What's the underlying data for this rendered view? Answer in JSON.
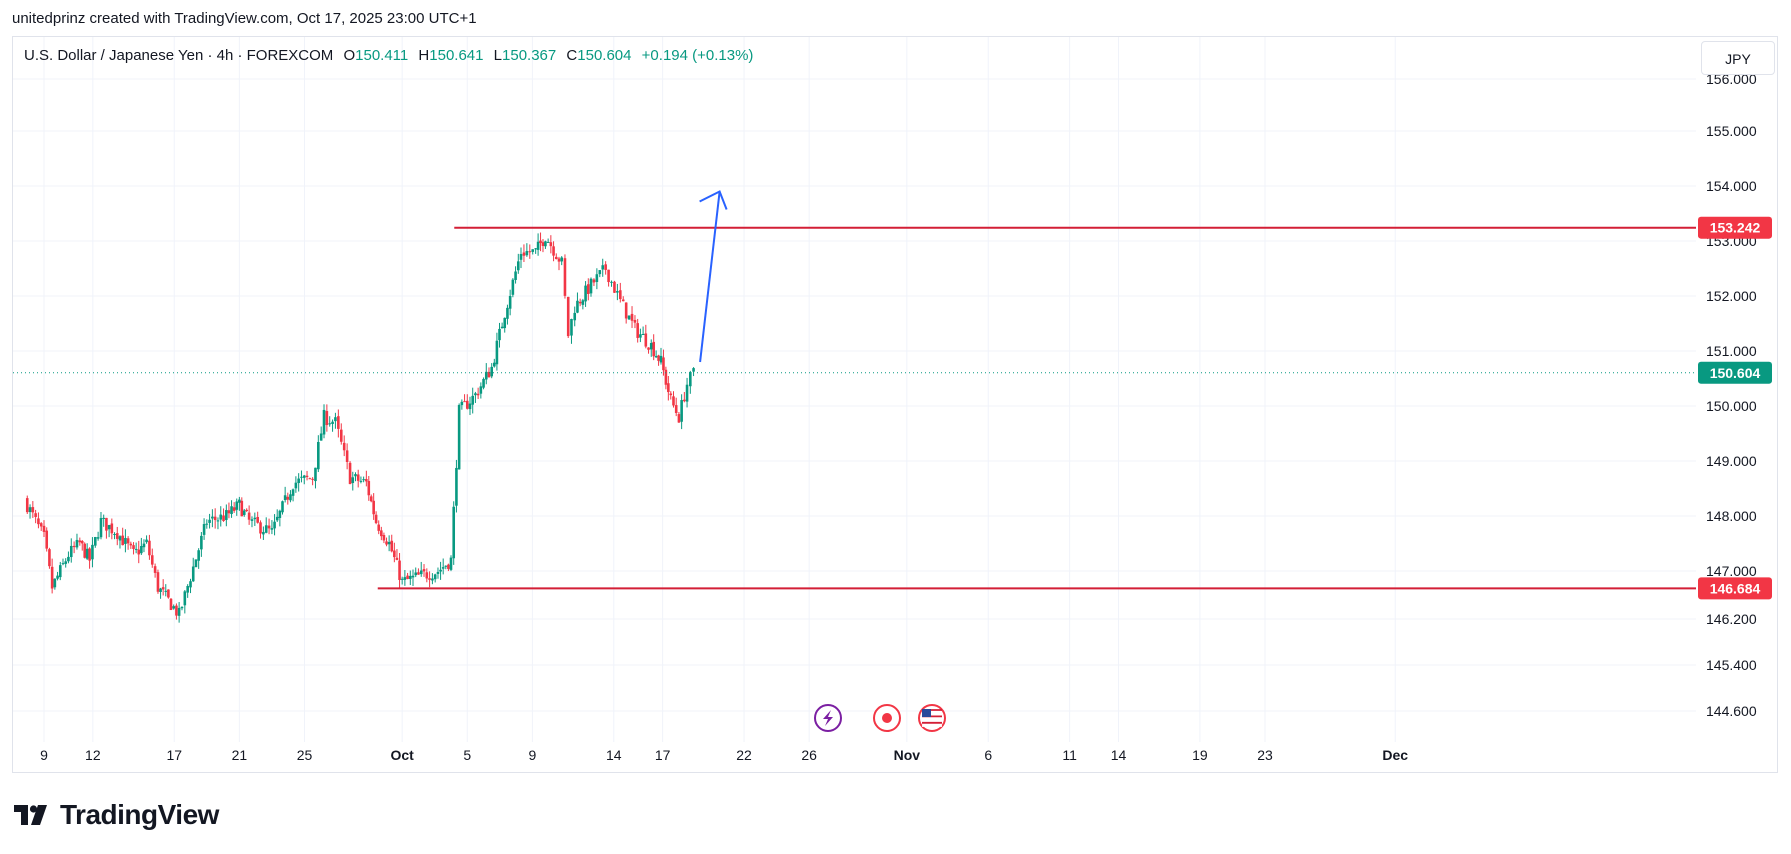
{
  "header": {
    "attribution": "unitedprinz created with TradingView.com, Oct 17, 2025 23:00 UTC+1"
  },
  "legend": {
    "symbol": "U.S. Dollar / Japanese Yen · 4h · FOREXCOM",
    "o_label": "O",
    "o_value": "150.411",
    "h_label": "H",
    "h_value": "150.641",
    "l_label": "L",
    "l_value": "150.367",
    "c_label": "C",
    "c_value": "150.604",
    "change": "+0.194 (+0.13%)"
  },
  "currency_button": "JPY",
  "footer": {
    "brand": "TradingView"
  },
  "colors": {
    "up": "#089981",
    "down": "#f23645",
    "level_line": "#d31f36",
    "arrow": "#2962ff",
    "grid": "#f0f3fa",
    "axis_text": "#131722"
  },
  "icons": [
    "lightning-event-icon",
    "record-event-icon",
    "us-flag-event-icon"
  ],
  "chart_data": {
    "type": "candlestick",
    "symbol": "USD/JPY",
    "interval": "4h",
    "y_axis": {
      "ticks": [
        {
          "value": 155.0,
          "label": "155.000"
        },
        {
          "value": 154.0,
          "label": "154.000"
        },
        {
          "value": 153.0,
          "label": "153.000"
        },
        {
          "value": 152.0,
          "label": "152.000"
        },
        {
          "value": 151.0,
          "label": "151.000"
        },
        {
          "value": 150.0,
          "label": "150.000"
        },
        {
          "value": 149.0,
          "label": "149.000"
        },
        {
          "value": 148.0,
          "label": "148.000"
        },
        {
          "value": 147.0,
          "label": "147.000"
        },
        {
          "value": 146.2,
          "label": "146.200"
        },
        {
          "value": 145.4,
          "label": "145.400"
        },
        {
          "value": 144.6,
          "label": "144.600"
        }
      ],
      "top_partial_label": "156.000"
    },
    "x_axis": {
      "ticks": [
        {
          "day": 0,
          "label": "9",
          "bold": false
        },
        {
          "day": 3,
          "label": "12",
          "bold": false
        },
        {
          "day": 8,
          "label": "17",
          "bold": false
        },
        {
          "day": 12,
          "label": "21",
          "bold": false
        },
        {
          "day": 16,
          "label": "25",
          "bold": false
        },
        {
          "day": 22,
          "label": "Oct",
          "bold": true
        },
        {
          "day": 26,
          "label": "5",
          "bold": false
        },
        {
          "day": 30,
          "label": "9",
          "bold": false
        },
        {
          "day": 35,
          "label": "14",
          "bold": false
        },
        {
          "day": 38,
          "label": "17",
          "bold": false
        },
        {
          "day": 43,
          "label": "22",
          "bold": false
        },
        {
          "day": 47,
          "label": "26",
          "bold": false
        },
        {
          "day": 53,
          "label": "Nov",
          "bold": true
        },
        {
          "day": 58,
          "label": "6",
          "bold": false
        },
        {
          "day": 63,
          "label": "11",
          "bold": false
        },
        {
          "day": 66,
          "label": "14",
          "bold": false
        },
        {
          "day": 71,
          "label": "19",
          "bold": false
        },
        {
          "day": 75,
          "label": "23",
          "bold": false
        },
        {
          "day": 83,
          "label": "Dec",
          "bold": true
        }
      ]
    },
    "price_labels": [
      {
        "value": 153.242,
        "label": "153.242",
        "color": "#f23645"
      },
      {
        "value": 150.604,
        "label": "150.604",
        "color": "#089981"
      },
      {
        "value": 146.684,
        "label": "146.684",
        "color": "#f23645"
      }
    ],
    "levels": [
      {
        "value": 153.242,
        "start_day": 25.2
      },
      {
        "value": 146.684,
        "start_day": 20.5
      }
    ],
    "arrow": {
      "from": {
        "day": 40.3,
        "price": 150.8
      },
      "to": {
        "day": 41.5,
        "price": 153.9
      }
    },
    "waypoints": [
      {
        "day": -1.2,
        "price": 148.3
      },
      {
        "day": 0.0,
        "price": 147.6
      },
      {
        "day": 0.5,
        "price": 146.7
      },
      {
        "day": 1.5,
        "price": 147.3
      },
      {
        "day": 2.2,
        "price": 147.5
      },
      {
        "day": 2.8,
        "price": 147.2
      },
      {
        "day": 3.5,
        "price": 147.9
      },
      {
        "day": 4.5,
        "price": 147.7
      },
      {
        "day": 5.5,
        "price": 147.3
      },
      {
        "day": 6.3,
        "price": 147.5
      },
      {
        "day": 7.0,
        "price": 146.7
      },
      {
        "day": 7.8,
        "price": 146.4
      },
      {
        "day": 8.3,
        "price": 146.2
      },
      {
        "day": 9.0,
        "price": 146.9
      },
      {
        "day": 10.0,
        "price": 147.9
      },
      {
        "day": 11.2,
        "price": 148.0
      },
      {
        "day": 12.0,
        "price": 148.2
      },
      {
        "day": 12.6,
        "price": 147.9
      },
      {
        "day": 14.0,
        "price": 147.7
      },
      {
        "day": 15.3,
        "price": 148.6
      },
      {
        "day": 16.5,
        "price": 148.7
      },
      {
        "day": 17.2,
        "price": 149.8
      },
      {
        "day": 17.9,
        "price": 149.7
      },
      {
        "day": 18.8,
        "price": 148.7
      },
      {
        "day": 19.8,
        "price": 148.6
      },
      {
        "day": 20.4,
        "price": 147.9
      },
      {
        "day": 21.2,
        "price": 147.5
      },
      {
        "day": 22.0,
        "price": 146.8
      },
      {
        "day": 23.0,
        "price": 146.9
      },
      {
        "day": 24.2,
        "price": 147.0
      },
      {
        "day": 25.0,
        "price": 147.2
      },
      {
        "day": 25.5,
        "price": 149.9
      },
      {
        "day": 26.5,
        "price": 150.2
      },
      {
        "day": 27.5,
        "price": 150.7
      },
      {
        "day": 28.3,
        "price": 151.7
      },
      {
        "day": 29.3,
        "price": 152.8
      },
      {
        "day": 30.2,
        "price": 152.8
      },
      {
        "day": 30.8,
        "price": 153.1
      },
      {
        "day": 31.8,
        "price": 152.6
      },
      {
        "day": 32.2,
        "price": 151.3
      },
      {
        "day": 32.6,
        "price": 151.8
      },
      {
        "day": 33.6,
        "price": 152.2
      },
      {
        "day": 34.5,
        "price": 152.5
      },
      {
        "day": 35.4,
        "price": 151.9
      },
      {
        "day": 36.3,
        "price": 151.4
      },
      {
        "day": 37.3,
        "price": 151.1
      },
      {
        "day": 37.9,
        "price": 150.8
      },
      {
        "day": 38.5,
        "price": 150.1
      },
      {
        "day": 39.0,
        "price": 149.8
      },
      {
        "day": 39.5,
        "price": 150.4
      },
      {
        "day": 39.9,
        "price": 150.6
      }
    ]
  }
}
